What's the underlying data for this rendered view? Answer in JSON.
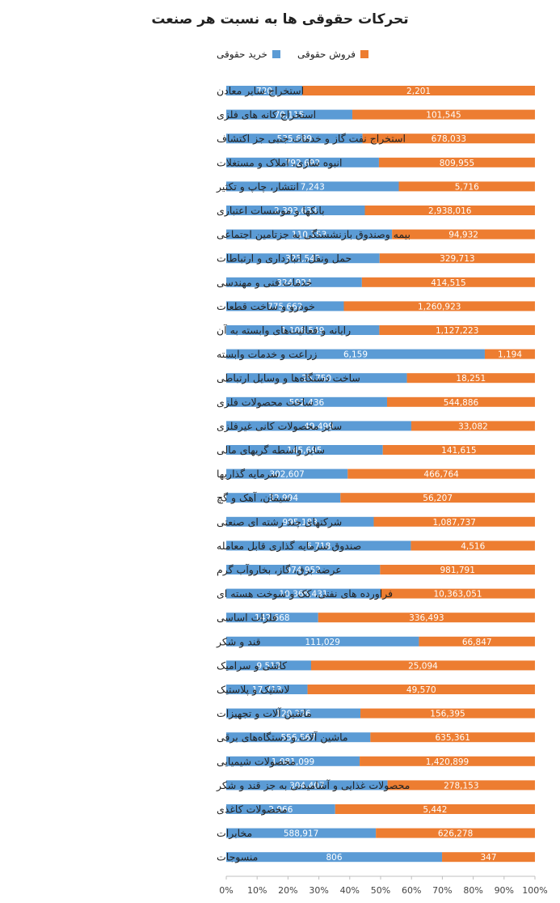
{
  "chart_data": {
    "type": "bar",
    "orientation": "horizontal",
    "stacking": "percent",
    "title": "تحرکات حقوقی ها به نسبت هر صنعت",
    "legend_position": "top",
    "grid": false,
    "xlim": [
      0,
      100
    ],
    "x_ticks": [
      "0%",
      "10%",
      "20%",
      "30%",
      "40%",
      "50%",
      "60%",
      "70%",
      "80%",
      "90%",
      "100%"
    ],
    "colors": {
      "buy": "#5B9BD5",
      "sell": "#ED7D31"
    },
    "categories": [
      "استخراج سایر معادن",
      "استخراج کانه های فلزی",
      "استخراج نفت گاز و خدمات جنبی جز اکتشاف",
      "انبوه سازی، املاک و مستغلات",
      "انتشار، چاپ و تکثیر",
      "بانکها و موسسات اعتباری",
      "بیمه وصندوق بازنشستگی به جزتامین اجتماعی",
      "حمل ونقل، انبارداری و ارتباطات",
      "خدمات فنی و مهندسی",
      "خودرو و ساخت قطعات",
      "رایانه و فعالیت‌های وابسته به آن",
      "زراعت و خدمات وابسته",
      "ساخت دستگاه‌ها و وسایل ارتباطی",
      "ساخت محصولات فلزی",
      "سایر محصولات کانی غیرفلزی",
      "سایر واسطه گریهای مالی",
      "سرمایه گذاریها",
      "سیمان، آهک و گچ",
      "شرکتهای چند رشته ای صنعتی",
      "صندوق سرمایه گذاری قابل معامله",
      "عرضه برق، گاز، بخاروآب گرم",
      "فراورده های نفتی، کک و سوخت هسته ای",
      "فلزات اساسی",
      "قند و شکر",
      "کاشی و سرامیک",
      "لاستیک و پلاستیک",
      "ماشین آلات و تجهیزات",
      "ماشین آلات و دستگاه‌های برقی",
      "محصولات شیمیایی",
      "محصولات غذایی و آشامیدنی به جز قند و شکر",
      "محصولات کاغذی",
      "مخابرات",
      "منسوجات"
    ],
    "series": [
      {
        "name": "خرید حقوقی",
        "values": [
          720,
          70115,
          535689,
          792692,
          7243,
          2393633,
          110153,
          325542,
          324924,
          775662,
          1108549,
          6159,
          25750,
          592436,
          49499,
          145695,
          302607,
          32994,
          995183,
          6718,
          974952,
          10366431,
          142668,
          111029,
          9512,
          17713,
          120226,
          556567,
          1081099,
          304407,
          2966,
          588917,
          806
        ],
        "labels": [
          "720",
          "70,115",
          "535,689",
          "792,692",
          "7,243",
          "2,393,633",
          "110,153",
          "325,542",
          "324,924",
          "775,662",
          "1,108,549",
          "6,159",
          "25,750",
          "592,436",
          "49,499",
          "145,695",
          "302,607",
          "32,994",
          "995,183",
          "6,718",
          "974,952",
          "10,366,431",
          "142,668",
          "111,029",
          "9,512",
          "17,713",
          "120,226",
          "556,567",
          "1,081,099",
          "304,407",
          "2,966",
          "588,917",
          "806"
        ]
      },
      {
        "name": "فروش حقوقی",
        "values": [
          2201,
          101545,
          678033,
          809955,
          5716,
          2938016,
          94932,
          329713,
          414515,
          1260923,
          1127223,
          1194,
          18251,
          544886,
          33082,
          141615,
          466764,
          56207,
          1087737,
          4516,
          981791,
          10363051,
          336493,
          66847,
          25094,
          49570,
          156395,
          635361,
          1420899,
          278153,
          5442,
          626278,
          347
        ],
        "labels": [
          "2,201",
          "101,545",
          "678,033",
          "809,955",
          "5,716",
          "2,938,016",
          "94,932",
          "329,713",
          "414,515",
          "1,260,923",
          "1,127,223",
          "1,194",
          "18,251",
          "544,886",
          "33,082",
          "141,615",
          "466,764",
          "56,207",
          "1,087,737",
          "4,516",
          "981,791",
          "10,363,051",
          "336,493",
          "66,847",
          "25,094",
          "49,570",
          "156,395",
          "635,361",
          "1,420,899",
          "278,153",
          "5,442",
          "626,278",
          "347"
        ]
      }
    ]
  }
}
